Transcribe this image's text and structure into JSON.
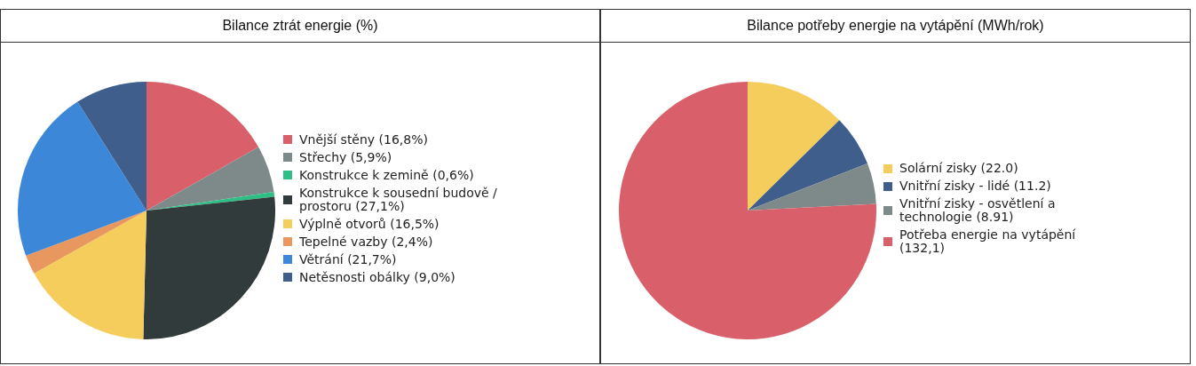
{
  "chart_data": [
    {
      "type": "pie",
      "title": "Bilance ztrát energie (%)",
      "legend": "right",
      "categories": [
        "Vnější stěny (16,8%)",
        "Střechy (5,9%)",
        "Konstrukce k zemině (0,6%)",
        "Konstrukce k sousední budově / prostoru (27,1%)",
        "Výplně otvorů (16,5%)",
        "Tepelné vazby (2,4%)",
        "Větrání (21,7%)",
        "Netěsnosti obálky (9,0%)"
      ],
      "values": [
        16.8,
        5.9,
        0.6,
        27.1,
        16.5,
        2.4,
        21.7,
        9.0
      ],
      "colors": [
        "#d9606b",
        "#7e8a8a",
        "#2ebf86",
        "#323b3b",
        "#f4cd5c",
        "#e8975e",
        "#3d87d8",
        "#3f5e8c"
      ]
    },
    {
      "type": "pie",
      "title": "Bilance potřeby energie na vytápění (MWh/rok)",
      "legend": "right",
      "categories": [
        "Solární zisky (22.0)",
        "Vnitřní zisky - lidé (11.2)",
        "Vnitřní zisky - osvětlení a technologie (8.91)",
        "Potřeba energie na vytápění (132,1)"
      ],
      "values": [
        22.0,
        11.2,
        8.91,
        132.1
      ],
      "colors": [
        "#f4cd5c",
        "#3f5e8c",
        "#7e8a8a",
        "#d9606b"
      ]
    }
  ]
}
